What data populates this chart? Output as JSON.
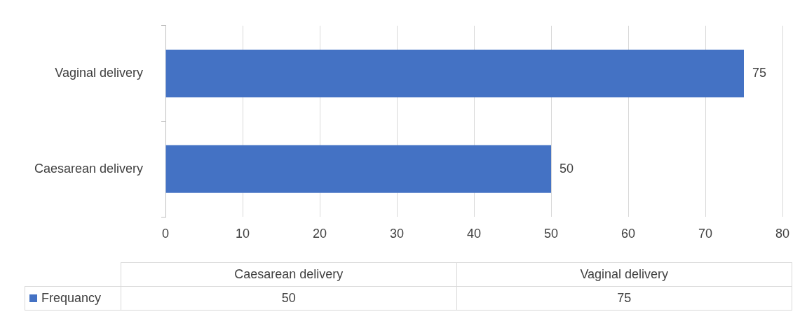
{
  "chart_data": {
    "type": "bar",
    "orientation": "horizontal",
    "categories": [
      "Vaginal delivery",
      "Caesarean delivery"
    ],
    "series": [
      {
        "name": "Frequancy",
        "color": "#4472c4",
        "values": [
          75,
          50
        ],
        "value_labels": [
          "75",
          "50"
        ]
      }
    ],
    "xlim": [
      0,
      80
    ],
    "xticks": [
      0,
      10,
      20,
      30,
      40,
      50,
      60,
      70,
      80
    ],
    "grid": "x",
    "legend": "bottom"
  }
}
